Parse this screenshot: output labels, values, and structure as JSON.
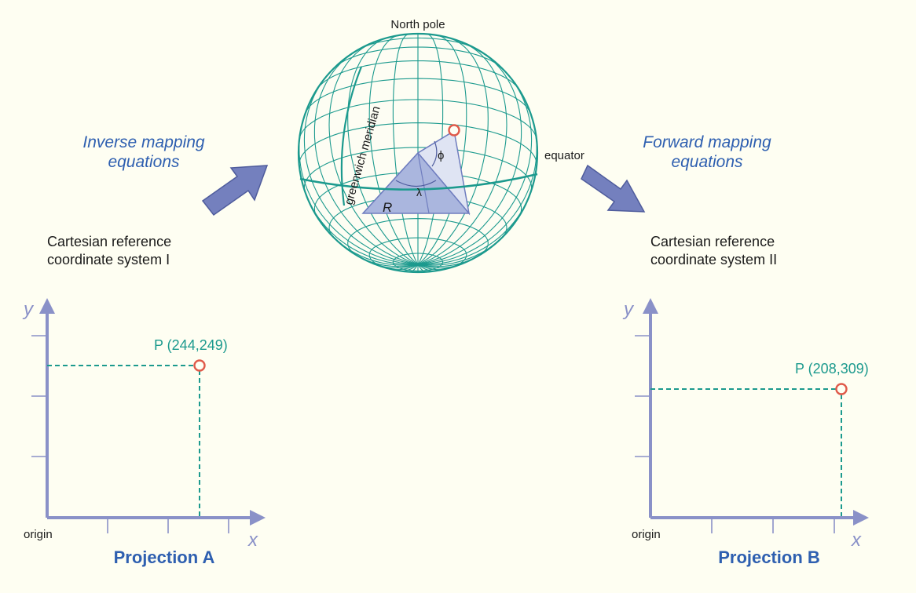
{
  "globe": {
    "north_pole_label": "North pole",
    "meridian_label": "greenwich meridian",
    "equator_label": "equator",
    "radius_label": "R",
    "lambda_label": "λ",
    "phi_label": "ϕ"
  },
  "inverse": {
    "line1": "Inverse mapping",
    "line2": "equations"
  },
  "forward": {
    "line1": "Forward mapping",
    "line2": "equations"
  },
  "system_a": {
    "caption_line1": "Cartesian reference",
    "caption_line2": "coordinate system I",
    "origin_label": "origin",
    "x_label": "x",
    "y_label": "y",
    "point_label": "P (244,249)",
    "projection_title": "Projection A"
  },
  "system_b": {
    "caption_line1": "Cartesian reference",
    "caption_line2": "coordinate system II",
    "origin_label": "origin",
    "x_label": "x",
    "y_label": "y",
    "point_label": "P (208,309)",
    "projection_title": "Projection B"
  },
  "colors": {
    "background": "#fefef2",
    "axis": "#8a91c8",
    "graticule": "#1c9a8e",
    "point_marker": "#e05a4a",
    "title_blue": "#2e5fb0",
    "arrow_fill": "#7480be"
  }
}
